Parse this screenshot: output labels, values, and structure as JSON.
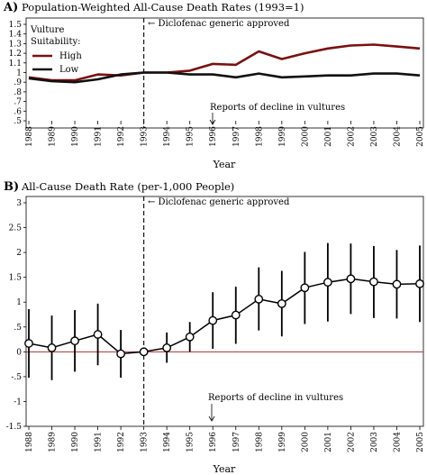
{
  "chart_data": [
    {
      "type": "line",
      "panel_letter": "A)",
      "title": "Population-Weighted All-Cause Death Rates (1993=1)",
      "xlabel": "Year",
      "ylabel": "",
      "categories": [
        "1988",
        "1989",
        "1990",
        "1991",
        "1992",
        "1993",
        "1994",
        "1995",
        "1996",
        "1997",
        "1998",
        "1999",
        "2000",
        "2001",
        "2002",
        "2003",
        "2004",
        "2005"
      ],
      "ylim": [
        0.5,
        1.5
      ],
      "yticks": [
        ".5",
        ".6",
        ".7",
        ".8",
        ".9",
        "1",
        "1.1",
        "1.2",
        "1.3",
        "1.4",
        "1.5"
      ],
      "legend": {
        "title_lines": [
          "Vulture",
          "Suitability:"
        ],
        "placement": "top-left"
      },
      "series": [
        {
          "name": "High",
          "color": "#7a1010",
          "values": [
            0.95,
            0.92,
            0.92,
            0.98,
            0.97,
            1.0,
            1.0,
            1.02,
            1.09,
            1.08,
            1.22,
            1.14,
            1.2,
            1.25,
            1.28,
            1.29,
            1.27,
            1.25
          ]
        },
        {
          "name": "Low",
          "color": "#111111",
          "values": [
            0.94,
            0.91,
            0.9,
            0.93,
            0.98,
            1.0,
            1.0,
            0.98,
            0.98,
            0.95,
            0.99,
            0.95,
            0.96,
            0.97,
            0.97,
            0.99,
            0.99,
            0.97
          ]
        }
      ],
      "event_year": "1993",
      "annotations": {
        "event": "← Diclofenac generic approved",
        "reports": "Reports of decline in vultures",
        "reports_year": "1996"
      }
    },
    {
      "type": "line",
      "panel_letter": "B)",
      "title": "All-Cause Death Rate (per-1,000 People)",
      "xlabel": "Year",
      "ylabel": "",
      "categories": [
        "1988",
        "1989",
        "1990",
        "1991",
        "1992",
        "1993",
        "1994",
        "1995",
        "1996",
        "1997",
        "1998",
        "1999",
        "2000",
        "2001",
        "2002",
        "2003",
        "2004",
        "2005"
      ],
      "ylim": [
        -1.5,
        3
      ],
      "yticks": [
        "-1.5",
        "-1",
        "-.5",
        "0",
        "0.5",
        "1",
        "1.5",
        "2",
        "2.5",
        "3"
      ],
      "yticks_display": [
        "-1.5",
        "-1",
        "-.5",
        "0",
        ".5",
        "1",
        "1.5",
        "2",
        "2.5",
        "3"
      ],
      "series": [
        {
          "name": "",
          "color": "#000000",
          "values": [
            0.17,
            0.08,
            0.22,
            0.35,
            -0.04,
            0.0,
            0.08,
            0.3,
            0.63,
            0.74,
            1.06,
            0.97,
            1.29,
            1.4,
            1.47,
            1.41,
            1.36,
            1.37
          ],
          "ci_low": [
            -0.52,
            -0.57,
            -0.4,
            -0.27,
            -0.52,
            0.0,
            -0.22,
            0.0,
            0.06,
            0.16,
            0.43,
            0.31,
            0.56,
            0.61,
            0.76,
            0.68,
            0.67,
            0.6
          ],
          "ci_high": [
            0.86,
            0.73,
            0.84,
            0.97,
            0.44,
            0.0,
            0.39,
            0.6,
            1.2,
            1.31,
            1.7,
            1.63,
            2.01,
            2.19,
            2.18,
            2.13,
            2.05,
            2.14
          ]
        }
      ],
      "reference_line": {
        "y": 0,
        "color": "#a83232"
      },
      "event_year": "1993",
      "annotations": {
        "event": "← Diclofenac generic approved",
        "reports": "Reports of decline in vultures",
        "reports_year": "1996"
      }
    }
  ]
}
